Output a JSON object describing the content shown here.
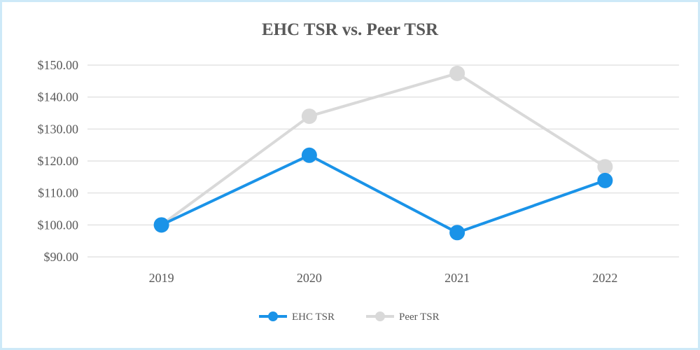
{
  "chart_data": {
    "type": "line",
    "title": "EHC TSR vs. Peer TSR",
    "categories": [
      "2019",
      "2020",
      "2021",
      "2022"
    ],
    "series": [
      {
        "name": "EHC TSR",
        "color": "#1a93e8",
        "values": [
          100.0,
          121.8,
          97.6,
          113.9
        ]
      },
      {
        "name": "Peer TSR",
        "color": "#d9d9d9",
        "values": [
          100.0,
          134.0,
          147.4,
          118.2
        ]
      }
    ],
    "ylim": [
      90,
      150
    ],
    "yticks": [
      90,
      100,
      110,
      120,
      130,
      140,
      150
    ],
    "ytick_labels": [
      "$90.00",
      "$100.00",
      "$110.00",
      "$120.00",
      "$130.00",
      "$140.00",
      "$150.00"
    ],
    "xlabel": "",
    "ylabel": "",
    "grid": true,
    "legend": "bottom-center"
  }
}
